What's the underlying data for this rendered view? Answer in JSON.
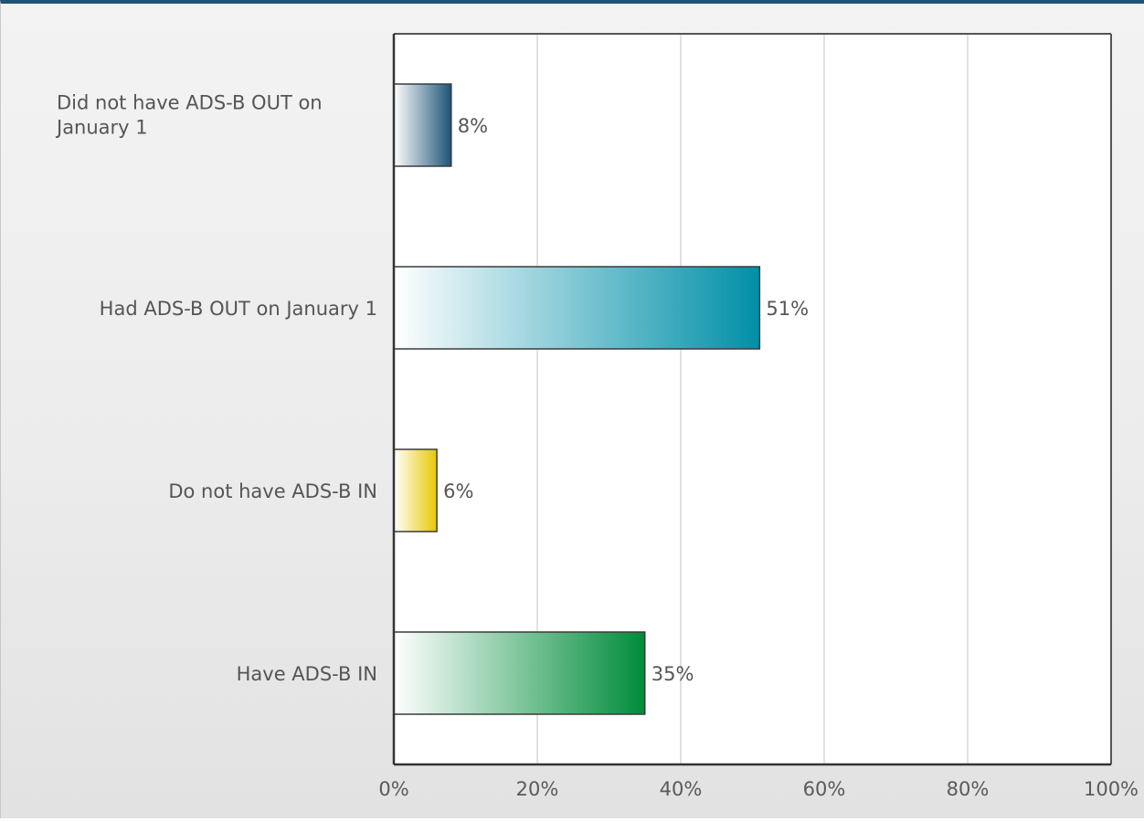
{
  "chart_data": {
    "type": "bar",
    "orientation": "horizontal",
    "categories": [
      [
        "Did not have ADS-B OUT on",
        "January 1"
      ],
      [
        "Had ADS-B OUT on January 1"
      ],
      [
        "Do not have ADS-B IN"
      ],
      [
        "Have ADS-B IN"
      ]
    ],
    "values": [
      8,
      51,
      6,
      35
    ],
    "value_labels": [
      "8%",
      "51%",
      "6%",
      "35%"
    ],
    "bar_colors": [
      "#1d5577",
      "#008fa8",
      "#e8c800",
      "#008c3a"
    ],
    "xlim": [
      0,
      100
    ],
    "x_ticks": [
      0,
      20,
      40,
      60,
      80,
      100
    ],
    "x_tick_labels": [
      "0%",
      "20%",
      "40%",
      "60%",
      "80%",
      "100%"
    ],
    "grid": true,
    "legend": "none"
  }
}
